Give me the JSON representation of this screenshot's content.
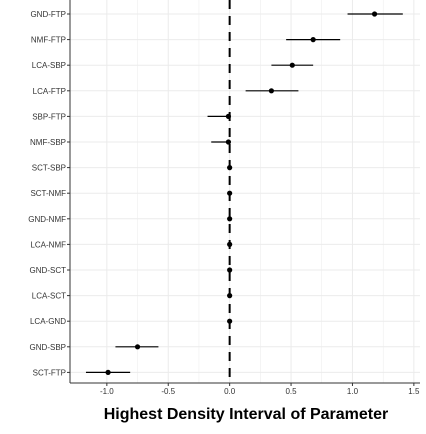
{
  "chart_data": {
    "type": "forest",
    "title": "",
    "xlabel": "Highest Density Interval of Parameter",
    "ylabel": "",
    "xlim": [
      -1.3,
      1.55
    ],
    "x_ticks": [
      -1.0,
      -0.5,
      0.0,
      0.5,
      1.0,
      1.5
    ],
    "x_tick_labels": [
      "-1.0",
      "-0.5",
      "0.0",
      "0.5",
      "1.0",
      "1.5"
    ],
    "reference_line": {
      "x": 0,
      "style": "dashed"
    },
    "grid": true,
    "categories": [
      "GND-FTP",
      "NMF-FTP",
      "LCA-SBP",
      "LCA-FTP",
      "SBP-FTP",
      "NMF-SBP",
      "SCT-SBP",
      "SCT-NMF",
      "GND-NMF",
      "LCA-NMF",
      "GND-SCT",
      "LCA-SCT",
      "LCA-GND",
      "GND-SBP",
      "SCT-FTP"
    ],
    "estimates": [
      1.18,
      0.68,
      0.51,
      0.34,
      -0.01,
      -0.01,
      0.0,
      0.0,
      0.0,
      0.0,
      0.0,
      0.0,
      0.0,
      -0.75,
      -0.99
    ],
    "lower": [
      0.96,
      0.46,
      0.34,
      0.13,
      -0.18,
      -0.15,
      -0.01,
      -0.01,
      -0.01,
      -0.01,
      -0.01,
      -0.01,
      -0.01,
      -0.93,
      -1.17
    ],
    "upper": [
      1.41,
      0.9,
      0.68,
      0.56,
      0.0,
      0.0,
      0.01,
      0.01,
      0.01,
      0.01,
      0.01,
      0.01,
      0.01,
      -0.58,
      -0.81
    ]
  },
  "colors": {
    "points": "#000000",
    "grid": "#ebebeb",
    "panel_border": "#333333",
    "background": "#ffffff"
  }
}
